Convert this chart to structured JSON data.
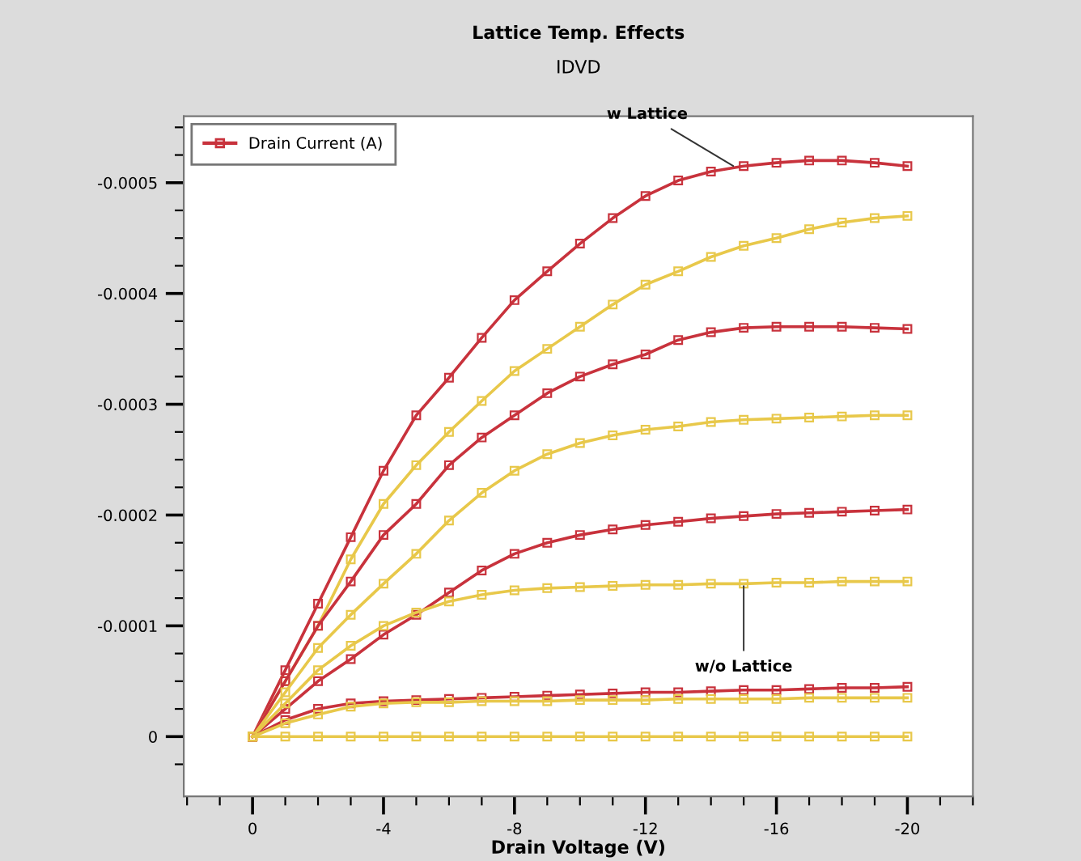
{
  "chart_data": {
    "type": "line",
    "title": "Lattice Temp. Effects",
    "subtitle": "IDVD",
    "xlabel": "Drain Voltage (V)",
    "x": [
      0,
      -1,
      -2,
      -3,
      -4,
      -5,
      -6,
      -7,
      -8,
      -9,
      -10,
      -11,
      -12,
      -13,
      -14,
      -15,
      -16,
      -17,
      -18,
      -19,
      -20
    ],
    "series": [
      {
        "name": "Drain Current (A)",
        "color": "#c8323c",
        "values": [
          0,
          -6e-05,
          -0.00012,
          -0.00018,
          -0.00024,
          -0.00029,
          -0.000324,
          -0.00036,
          -0.000394,
          -0.00042,
          -0.000445,
          -0.000468,
          -0.000488,
          -0.000502,
          -0.00051,
          -0.000515,
          -0.000518,
          -0.00052,
          -0.00052,
          -0.000518,
          -0.000515
        ]
      },
      {
        "color": "#e8c84a",
        "values": [
          0,
          -5e-05,
          -0.0001,
          -0.00016,
          -0.00021,
          -0.000245,
          -0.000275,
          -0.000303,
          -0.00033,
          -0.00035,
          -0.00037,
          -0.00039,
          -0.000408,
          -0.00042,
          -0.000433,
          -0.000443,
          -0.00045,
          -0.000458,
          -0.000464,
          -0.000468,
          -0.00047
        ]
      },
      {
        "color": "#c8323c",
        "values": [
          0,
          -5e-05,
          -0.0001,
          -0.00014,
          -0.000182,
          -0.00021,
          -0.000245,
          -0.00027,
          -0.00029,
          -0.00031,
          -0.000325,
          -0.000336,
          -0.000345,
          -0.000358,
          -0.000365,
          -0.000369,
          -0.00037,
          -0.00037,
          -0.00037,
          -0.000369,
          -0.000368
        ]
      },
      {
        "color": "#e8c84a",
        "values": [
          0,
          -4e-05,
          -8e-05,
          -0.00011,
          -0.000138,
          -0.000165,
          -0.000195,
          -0.00022,
          -0.00024,
          -0.000255,
          -0.000265,
          -0.000272,
          -0.000277,
          -0.00028,
          -0.000284,
          -0.000286,
          -0.000287,
          -0.000288,
          -0.000289,
          -0.00029,
          -0.00029
        ]
      },
      {
        "color": "#c8323c",
        "values": [
          0,
          -2.5e-05,
          -5e-05,
          -7e-05,
          -9.2e-05,
          -0.00011,
          -0.00013,
          -0.00015,
          -0.000165,
          -0.000175,
          -0.000182,
          -0.000187,
          -0.000191,
          -0.000194,
          -0.000197,
          -0.000199,
          -0.000201,
          -0.000202,
          -0.000203,
          -0.000204,
          -0.000205
        ]
      },
      {
        "color": "#e8c84a",
        "values": [
          0,
          -3e-05,
          -6e-05,
          -8.2e-05,
          -0.0001,
          -0.000112,
          -0.000122,
          -0.000128,
          -0.000132,
          -0.000134,
          -0.000135,
          -0.000136,
          -0.000137,
          -0.000137,
          -0.000138,
          -0.000138,
          -0.000139,
          -0.000139,
          -0.00014,
          -0.00014,
          -0.00014
        ]
      },
      {
        "color": "#c8323c",
        "values": [
          0,
          -1.5e-05,
          -2.5e-05,
          -3e-05,
          -3.2e-05,
          -3.3e-05,
          -3.4e-05,
          -3.5e-05,
          -3.6e-05,
          -3.7e-05,
          -3.8e-05,
          -3.9e-05,
          -4e-05,
          -4e-05,
          -4.1e-05,
          -4.2e-05,
          -4.2e-05,
          -4.3e-05,
          -4.4e-05,
          -4.4e-05,
          -4.5e-05
        ]
      },
      {
        "color": "#e8c84a",
        "values": [
          0,
          -1.2e-05,
          -2e-05,
          -2.7e-05,
          -3e-05,
          -3.1e-05,
          -3.1e-05,
          -3.2e-05,
          -3.2e-05,
          -3.2e-05,
          -3.3e-05,
          -3.3e-05,
          -3.3e-05,
          -3.4e-05,
          -3.4e-05,
          -3.4e-05,
          -3.4e-05,
          -3.5e-05,
          -3.5e-05,
          -3.5e-05,
          -3.5e-05
        ]
      },
      {
        "color": "#e8c84a",
        "values": [
          0,
          0,
          0,
          0,
          0,
          0,
          0,
          0,
          0,
          0,
          0,
          0,
          0,
          0,
          0,
          0,
          0,
          0,
          0,
          0,
          0
        ]
      }
    ],
    "xlim": [
      2.1,
      -22
    ],
    "ylim": [
      5.4e-05,
      -0.00056
    ],
    "xticks": [
      {
        "value": 2,
        "label": null
      },
      {
        "value": 1,
        "label": null
      },
      0,
      {
        "value": -1,
        "label": null
      },
      {
        "value": -2,
        "label": null
      },
      {
        "value": -3,
        "label": null
      },
      -4,
      {
        "value": -5,
        "label": null
      },
      {
        "value": -6,
        "label": null
      },
      {
        "value": -7,
        "label": null
      },
      -8,
      {
        "value": -9,
        "label": null
      },
      {
        "value": -10,
        "label": null
      },
      {
        "value": -11,
        "label": null
      },
      -12,
      {
        "value": -13,
        "label": null
      },
      {
        "value": -14,
        "label": null
      },
      {
        "value": -15,
        "label": null
      },
      -16,
      {
        "value": -17,
        "label": null
      },
      {
        "value": -18,
        "label": null
      },
      {
        "value": -19,
        "label": null
      },
      -20,
      {
        "value": -21,
        "label": null
      },
      {
        "value": -22,
        "label": null
      }
    ],
    "yticks": [
      {
        "value": 2.5e-05,
        "label": null
      },
      0,
      {
        "value": -2.5e-05,
        "label": null
      },
      {
        "value": -5e-05,
        "label": null
      },
      {
        "value": -7.5e-05,
        "label": null
      },
      -0.0001,
      {
        "value": -0.000125,
        "label": null
      },
      {
        "value": -0.00015,
        "label": null
      },
      {
        "value": -0.000175,
        "label": null
      },
      -0.0002,
      {
        "value": -0.000225,
        "label": null
      },
      {
        "value": -0.00025,
        "label": null
      },
      {
        "value": -0.000275,
        "label": null
      },
      -0.0003,
      {
        "value": -0.000325,
        "label": null
      },
      {
        "value": -0.00035,
        "label": null
      },
      {
        "value": -0.000375,
        "label": null
      },
      -0.0004,
      {
        "value": -0.000425,
        "label": null
      },
      {
        "value": -0.00045,
        "label": null
      },
      {
        "value": -0.000475,
        "label": null
      },
      -0.0005,
      {
        "value": -0.000525,
        "label": null
      },
      {
        "value": -0.00055,
        "label": null
      }
    ],
    "annotations": [
      {
        "text": "w Lattice",
        "x": -14.8,
        "y": -0.000513
      },
      {
        "text": "w/o Lattice",
        "x": -15,
        "y": -0.00014
      }
    ],
    "marker": "square",
    "line_style": "solid",
    "legend": "top left",
    "grid": false
  }
}
